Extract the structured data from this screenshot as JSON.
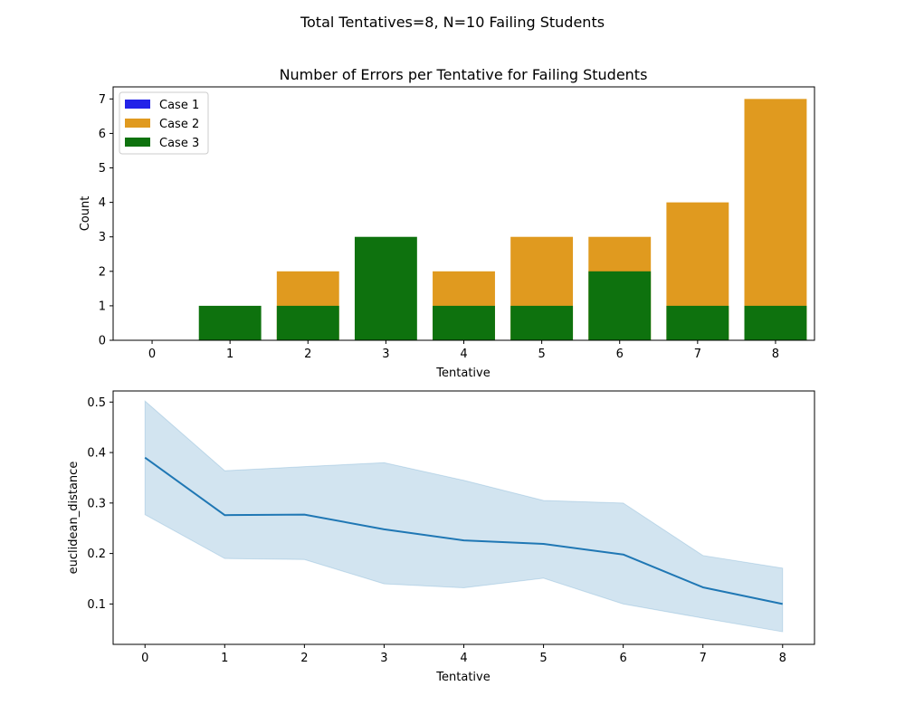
{
  "figure": {
    "suptitle": "Total Tentatives=8, N=10 Failing Students"
  },
  "chart_data": [
    {
      "type": "bar",
      "title": "Number of Errors per Tentative for Failing Students",
      "xlabel": "Tentative",
      "ylabel": "Count",
      "categories": [
        "0",
        "1",
        "2",
        "3",
        "4",
        "5",
        "6",
        "7",
        "8"
      ],
      "ylim": [
        0,
        7.35
      ],
      "yticks": [
        0,
        1,
        2,
        3,
        4,
        5,
        6,
        7
      ],
      "grid": false,
      "legend_position": "top-left",
      "series": [
        {
          "name": "Case 1",
          "color": "#2323e8",
          "values": [
            0,
            0,
            0,
            0,
            0,
            0,
            0,
            0,
            0
          ]
        },
        {
          "name": "Case 2",
          "color": "#e09a1f",
          "values": [
            0,
            0,
            2,
            0,
            2,
            3,
            3,
            4,
            7
          ]
        },
        {
          "name": "Case 3",
          "color": "#0e720e",
          "values": [
            0,
            1,
            1,
            3,
            1,
            1,
            2,
            1,
            1
          ]
        }
      ]
    },
    {
      "type": "line",
      "title": "",
      "xlabel": "Tentative",
      "ylabel": "euclidean_distance",
      "x": [
        0,
        1,
        2,
        3,
        4,
        5,
        6,
        7,
        8
      ],
      "xlim": [
        -0.4,
        8.4
      ],
      "ylim": [
        0.02,
        0.522
      ],
      "yticks": [
        0.1,
        0.2,
        0.3,
        0.4,
        0.5
      ],
      "yticklabels": [
        "0.1",
        "0.2",
        "0.3",
        "0.4",
        "0.5"
      ],
      "grid": false,
      "series": [
        {
          "color": "#1f77b4",
          "band_color": "#1f77b4",
          "values": [
            0.39,
            0.276,
            0.277,
            0.248,
            0.226,
            0.219,
            0.198,
            0.133,
            0.1
          ],
          "lower": [
            0.277,
            0.19,
            0.188,
            0.14,
            0.132,
            0.151,
            0.1,
            0.072,
            0.045
          ],
          "upper": [
            0.502,
            0.364,
            0.372,
            0.38,
            0.345,
            0.305,
            0.3,
            0.196,
            0.171
          ]
        }
      ]
    }
  ]
}
